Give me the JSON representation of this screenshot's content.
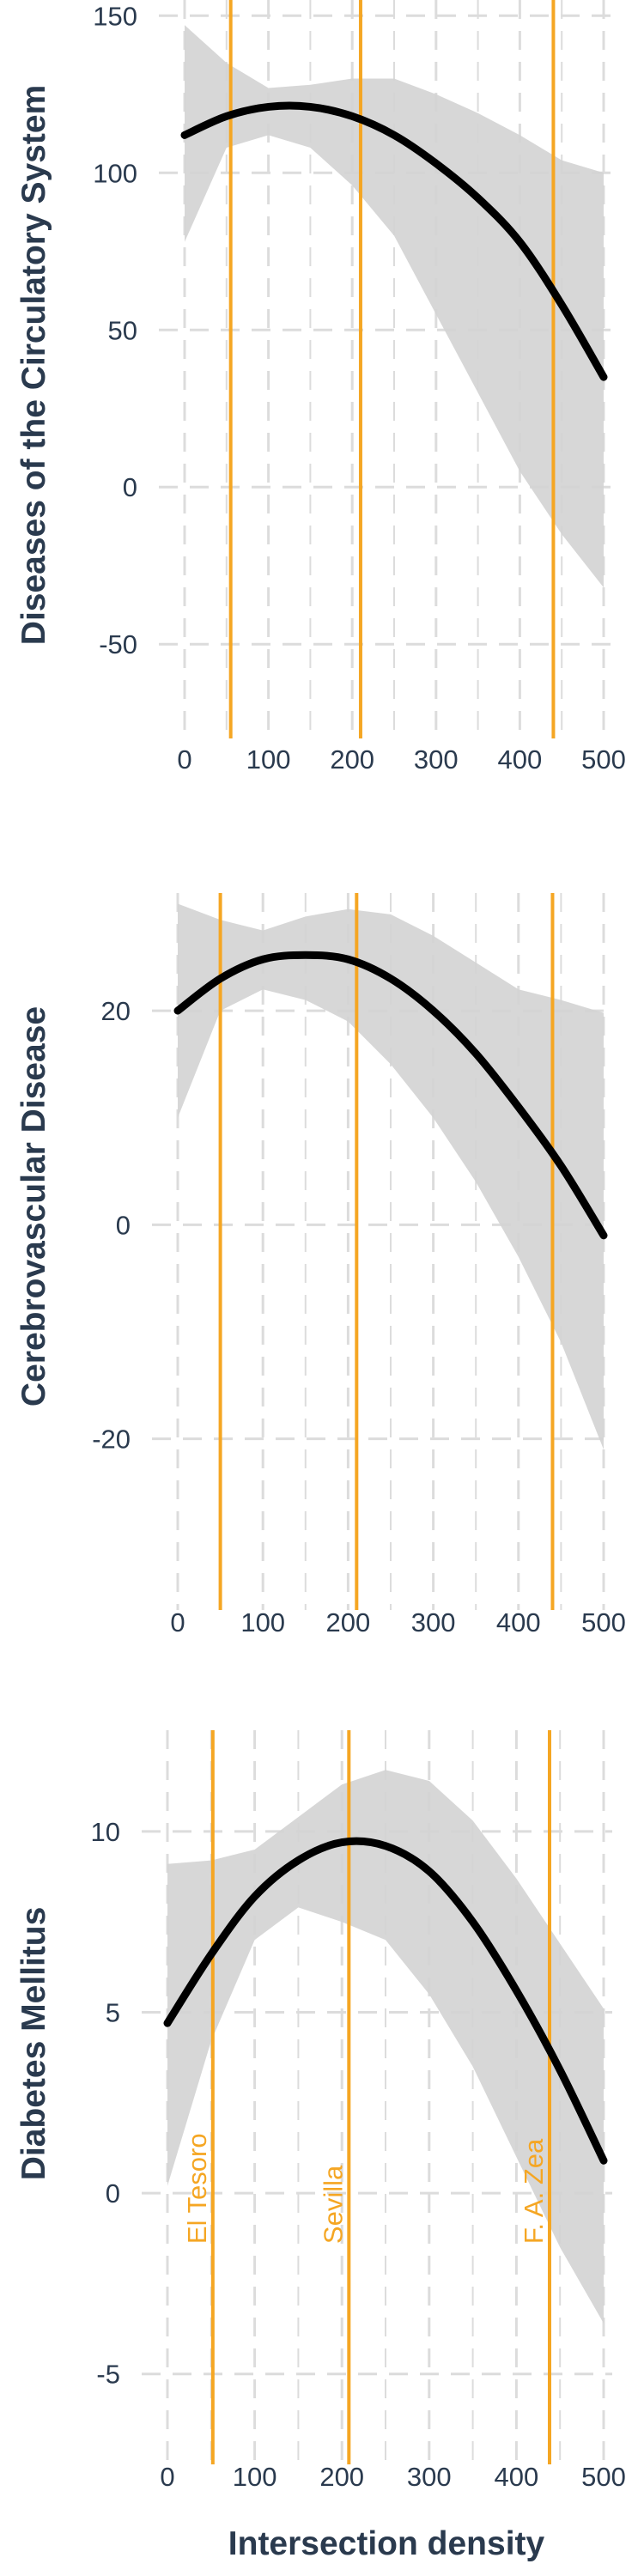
{
  "chart_data": [
    {
      "type": "line",
      "ylabel": "Diseases of the Circulatory System",
      "xlim": [
        0,
        500
      ],
      "ylim": [
        -80,
        155
      ],
      "x_ticks": [
        0,
        100,
        200,
        300,
        400,
        500
      ],
      "y_ticks": [
        -50,
        0,
        50,
        100,
        150
      ],
      "grid": true,
      "fit": {
        "x": [
          0,
          50,
          100,
          150,
          200,
          250,
          300,
          350,
          400,
          450,
          500
        ],
        "y": [
          112,
          118,
          121,
          121,
          118,
          112,
          103,
          92,
          78,
          58,
          35
        ],
        "lower": [
          78,
          108,
          112,
          108,
          96,
          80,
          55,
          30,
          5,
          -15,
          -32
        ],
        "upper": [
          147,
          135,
          127,
          128,
          130,
          130,
          125,
          119,
          112,
          104,
          100
        ]
      },
      "reference_lines": [
        {
          "x": 55,
          "label": ""
        },
        {
          "x": 210,
          "label": ""
        },
        {
          "x": 440,
          "label": ""
        }
      ]
    },
    {
      "type": "line",
      "ylabel": "Cerebrovascular Disease",
      "xlim": [
        0,
        500
      ],
      "ylim": [
        -36,
        31
      ],
      "x_ticks": [
        0,
        100,
        200,
        300,
        400,
        500
      ],
      "y_ticks": [
        -20,
        0,
        20
      ],
      "grid": true,
      "fit": {
        "x": [
          0,
          50,
          100,
          150,
          200,
          250,
          300,
          350,
          400,
          450,
          500
        ],
        "y": [
          20,
          23,
          24.8,
          25.2,
          24.8,
          23,
          20,
          16,
          11,
          5.5,
          -1
        ],
        "lower": [
          10,
          20,
          22,
          21,
          19,
          15,
          10,
          4,
          -3,
          -11,
          -21
        ],
        "upper": [
          30,
          28.5,
          27.5,
          28.8,
          29.5,
          29,
          27,
          24.5,
          22,
          21,
          19.8
        ]
      },
      "reference_lines": [
        {
          "x": 50,
          "label": ""
        },
        {
          "x": 210,
          "label": ""
        },
        {
          "x": 440,
          "label": ""
        }
      ]
    },
    {
      "type": "line",
      "ylabel": "Diabetes Mellitus",
      "xlabel": "Intersection density",
      "xlim": [
        0,
        500
      ],
      "ylim": [
        -7.5,
        12.8
      ],
      "x_ticks": [
        0,
        100,
        200,
        300,
        400,
        500
      ],
      "y_ticks": [
        -5,
        0,
        5,
        10
      ],
      "grid": true,
      "fit": {
        "x": [
          0,
          50,
          100,
          150,
          200,
          250,
          300,
          350,
          400,
          450,
          500
        ],
        "y": [
          4.7,
          6.6,
          8.2,
          9.2,
          9.7,
          9.6,
          8.9,
          7.5,
          5.6,
          3.4,
          0.9
        ],
        "lower": [
          0.2,
          4.2,
          7.0,
          7.9,
          7.5,
          7.0,
          5.5,
          3.5,
          1.0,
          -1.5,
          -3.6
        ],
        "upper": [
          9.1,
          9.2,
          9.5,
          10.4,
          11.3,
          11.7,
          11.4,
          10.3,
          8.7,
          6.9,
          5.1
        ]
      },
      "reference_lines": [
        {
          "x": 52,
          "label": "El Tesoro"
        },
        {
          "x": 208,
          "label": "Sevilla"
        },
        {
          "x": 438,
          "label": "F. A. Zea"
        }
      ]
    }
  ],
  "colors": {
    "fit_line": "#000000",
    "ribbon": "#d3d3d3",
    "reference": "#f5a623",
    "grid": "#dcdcdc",
    "text": "#2a3a4e"
  }
}
